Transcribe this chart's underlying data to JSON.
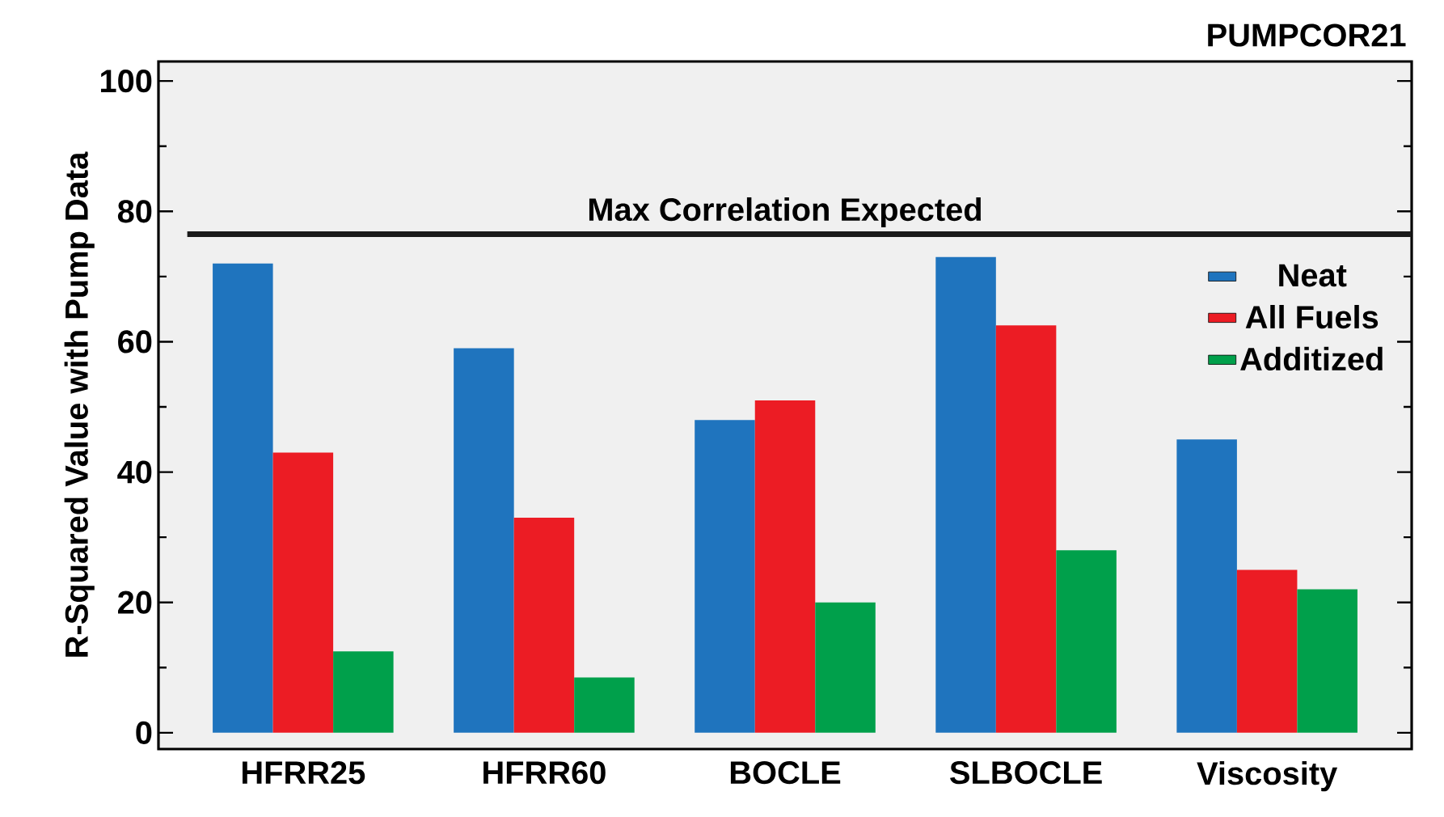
{
  "chart_data": {
    "type": "bar",
    "title": "PUMPCOR21",
    "ylabel": "R-Squared Value with Pump Data",
    "categories": [
      "HFRR25",
      "HFRR60",
      "BOCLE",
      "SLBOCLE",
      "Viscosity"
    ],
    "series": [
      {
        "name": "Neat",
        "color": "#1f74be",
        "values": [
          72,
          59,
          48,
          73,
          45
        ]
      },
      {
        "name": "All Fuels",
        "color": "#ec1c24",
        "values": [
          43,
          33,
          51,
          62.5,
          25
        ]
      },
      {
        "name": "Additized",
        "color": "#00a04b",
        "values": [
          12.5,
          8.5,
          20,
          28,
          22
        ]
      }
    ],
    "ylim": [
      -2.5,
      103
    ],
    "yticks": [
      0,
      20,
      40,
      60,
      80,
      100
    ],
    "ref_lines": [
      {
        "axis": "y",
        "value": 76.5,
        "label": "Max Correlation Expected",
        "color": "#1a1a1a"
      }
    ],
    "legend": "top right",
    "grid": false
  }
}
